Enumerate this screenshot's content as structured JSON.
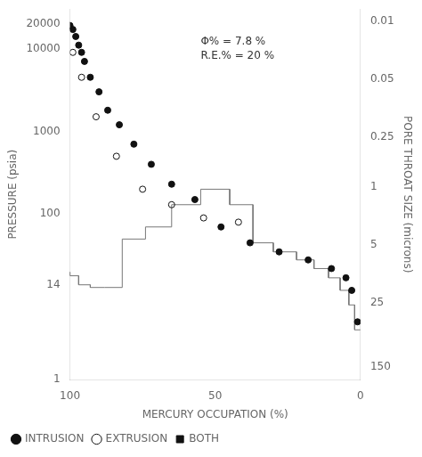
{
  "chart_data": {
    "type": "scatter",
    "annotation": "Φ% = 7.8 %\nR.E.% = 20 %",
    "x_label": "MERCURY OCCUPATION (%)",
    "y_label": "PRESSURE (psia)",
    "y2_label": "PORE THROAT SIZE (microns)",
    "xlim": [
      100,
      0
    ],
    "xticks": [
      100,
      {
        "value": 75,
        "label": null
      },
      50,
      {
        "value": 25,
        "label": null
      },
      0
    ],
    "ylim": [
      1,
      30000
    ],
    "yticks": [
      1,
      14,
      100,
      1000,
      10000,
      20000
    ],
    "y2lim": [
      214,
      0.007133333333333333
    ],
    "y2ticks": [
      0.01,
      0.05,
      0.25,
      1,
      5,
      25,
      150
    ],
    "log": "y",
    "grid": false,
    "legend": "lower left",
    "series": [
      {
        "type": "line",
        "color": "#777777",
        "x": [
          100,
          100,
          97,
          97,
          93,
          93,
          88,
          88,
          82,
          82,
          74,
          74,
          65,
          65,
          55,
          55,
          45,
          45,
          37,
          37,
          30,
          30,
          22,
          22,
          16,
          16,
          11,
          11,
          7,
          7,
          4,
          4,
          2,
          2,
          0
        ],
        "values": [
          20,
          18,
          18,
          14,
          14,
          13,
          13,
          13,
          13,
          50,
          50,
          70,
          70,
          130,
          130,
          200,
          200,
          130,
          130,
          45,
          45,
          35,
          35,
          28,
          28,
          22,
          22,
          17,
          17,
          12,
          12,
          8,
          8,
          4,
          4
        ]
      },
      {
        "name": "INTRUSION",
        "type": "scatter",
        "marker": "circle",
        "color": "#111111",
        "x": [
          100,
          99,
          98,
          97,
          96,
          95,
          93,
          90,
          87,
          83,
          78,
          72,
          65,
          57,
          48,
          38,
          28,
          18,
          10,
          5,
          3,
          1
        ],
        "values": [
          19000,
          17000,
          14000,
          11000,
          9000,
          7000,
          4500,
          3000,
          1800,
          1200,
          700,
          400,
          230,
          150,
          70,
          45,
          35,
          28,
          22,
          17,
          12,
          5
        ]
      },
      {
        "name": "EXTRUSION",
        "type": "scatter",
        "marker": "open_circle",
        "color": "#111111",
        "x": [
          99,
          96,
          91,
          84,
          75,
          65,
          54,
          42
        ],
        "values": [
          9000,
          4500,
          1500,
          500,
          200,
          130,
          90,
          80
        ]
      },
      {
        "name": "BOTH",
        "type": "scatter",
        "marker": "square",
        "color": "#111111",
        "x": [],
        "values": []
      }
    ]
  }
}
